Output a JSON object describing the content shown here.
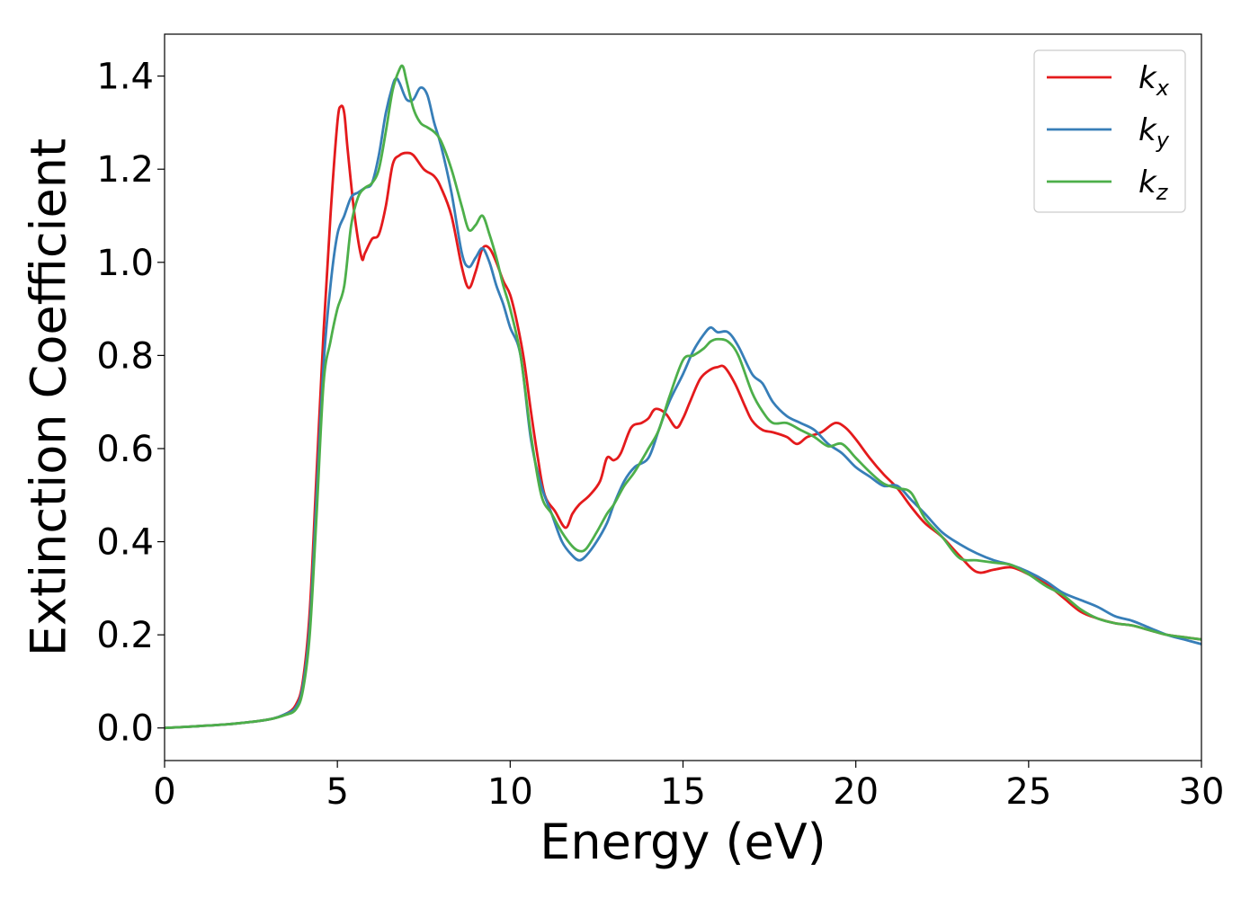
{
  "chart_data": {
    "type": "line",
    "title": "",
    "xlabel": "Energy (eV)",
    "ylabel": "Extinction Coefficient",
    "xlim": [
      0,
      30
    ],
    "ylim": [
      -0.07,
      1.49
    ],
    "xticks": [
      0,
      5,
      10,
      15,
      20,
      25,
      30
    ],
    "xtick_labels": [
      "0",
      "5",
      "10",
      "15",
      "20",
      "25",
      "30"
    ],
    "yticks": [
      0.0,
      0.2,
      0.4,
      0.6,
      0.8,
      1.0,
      1.2,
      1.4
    ],
    "ytick_labels": [
      "0.0",
      "0.2",
      "0.4",
      "0.6",
      "0.8",
      "1.0",
      "1.2",
      "1.4"
    ],
    "grid": false,
    "legend_position": "top-right",
    "series": [
      {
        "name": "k",
        "subscript": "x",
        "color": "#e41a1c",
        "x": [
          0,
          1,
          2,
          3,
          3.5,
          3.8,
          4.0,
          4.2,
          4.4,
          4.6,
          4.8,
          5.0,
          5.1,
          5.2,
          5.3,
          5.5,
          5.7,
          5.8,
          6.0,
          6.2,
          6.4,
          6.6,
          6.8,
          7.0,
          7.2,
          7.5,
          7.8,
          8.0,
          8.3,
          8.6,
          8.8,
          9.0,
          9.2,
          9.4,
          9.6,
          9.8,
          10.0,
          10.2,
          10.4,
          10.6,
          10.8,
          11.0,
          11.3,
          11.6,
          11.8,
          12.0,
          12.3,
          12.6,
          12.8,
          13.0,
          13.2,
          13.5,
          13.8,
          14.0,
          14.2,
          14.5,
          14.8,
          15.0,
          15.2,
          15.5,
          15.8,
          16.0,
          16.2,
          16.5,
          16.8,
          17.0,
          17.3,
          17.6,
          18.0,
          18.3,
          18.6,
          19.0,
          19.4,
          19.7,
          20.0,
          20.4,
          20.8,
          21.2,
          21.6,
          22.0,
          22.5,
          23.0,
          23.5,
          24.0,
          24.5,
          25.0,
          25.5,
          26.0,
          26.5,
          27.0,
          27.5,
          28.0,
          28.5,
          29.0,
          29.5,
          30.0
        ],
        "y": [
          0.0,
          0.004,
          0.009,
          0.018,
          0.03,
          0.05,
          0.1,
          0.25,
          0.55,
          0.85,
          1.1,
          1.3,
          1.335,
          1.32,
          1.24,
          1.1,
          1.01,
          1.02,
          1.05,
          1.06,
          1.12,
          1.21,
          1.23,
          1.235,
          1.23,
          1.2,
          1.185,
          1.16,
          1.1,
          0.99,
          0.945,
          0.98,
          1.03,
          1.03,
          1.0,
          0.96,
          0.93,
          0.87,
          0.79,
          0.68,
          0.58,
          0.5,
          0.465,
          0.43,
          0.46,
          0.48,
          0.5,
          0.53,
          0.58,
          0.575,
          0.59,
          0.645,
          0.655,
          0.665,
          0.685,
          0.675,
          0.645,
          0.665,
          0.7,
          0.75,
          0.77,
          0.775,
          0.775,
          0.74,
          0.69,
          0.66,
          0.64,
          0.635,
          0.625,
          0.61,
          0.625,
          0.635,
          0.655,
          0.645,
          0.62,
          0.58,
          0.545,
          0.515,
          0.475,
          0.44,
          0.41,
          0.37,
          0.335,
          0.34,
          0.345,
          0.33,
          0.31,
          0.28,
          0.25,
          0.235,
          0.225,
          0.22,
          0.21,
          0.2,
          0.195,
          0.19
        ]
      },
      {
        "name": "k",
        "subscript": "y",
        "color": "#377eb8",
        "x": [
          0,
          1,
          2,
          3,
          3.5,
          3.8,
          4.0,
          4.2,
          4.4,
          4.6,
          4.8,
          5.0,
          5.2,
          5.4,
          5.6,
          5.8,
          6.0,
          6.2,
          6.4,
          6.6,
          6.7,
          6.8,
          7.0,
          7.2,
          7.4,
          7.6,
          7.8,
          8.0,
          8.3,
          8.6,
          8.8,
          9.0,
          9.2,
          9.4,
          9.6,
          9.8,
          10.0,
          10.3,
          10.6,
          10.9,
          11.2,
          11.5,
          11.8,
          12.0,
          12.2,
          12.5,
          12.8,
          13.0,
          13.3,
          13.6,
          14.0,
          14.3,
          14.6,
          15.0,
          15.3,
          15.6,
          15.8,
          16.0,
          16.3,
          16.6,
          17.0,
          17.3,
          17.6,
          18.0,
          18.4,
          18.8,
          19.2,
          19.6,
          20.0,
          20.4,
          20.8,
          21.2,
          21.6,
          22.0,
          22.5,
          23.0,
          23.5,
          24.0,
          24.5,
          25.0,
          25.5,
          26.0,
          26.5,
          27.0,
          27.5,
          28.0,
          28.5,
          29.0,
          29.5,
          30.0
        ],
        "y": [
          0.0,
          0.004,
          0.009,
          0.018,
          0.03,
          0.045,
          0.09,
          0.22,
          0.5,
          0.78,
          0.95,
          1.06,
          1.1,
          1.14,
          1.15,
          1.16,
          1.17,
          1.23,
          1.32,
          1.38,
          1.395,
          1.385,
          1.35,
          1.35,
          1.375,
          1.36,
          1.3,
          1.25,
          1.15,
          1.02,
          0.99,
          1.01,
          1.03,
          1.0,
          0.95,
          0.91,
          0.86,
          0.8,
          0.62,
          0.52,
          0.46,
          0.4,
          0.37,
          0.36,
          0.37,
          0.4,
          0.44,
          0.48,
          0.53,
          0.56,
          0.58,
          0.64,
          0.7,
          0.76,
          0.81,
          0.845,
          0.86,
          0.85,
          0.85,
          0.82,
          0.76,
          0.74,
          0.7,
          0.67,
          0.655,
          0.64,
          0.61,
          0.59,
          0.56,
          0.54,
          0.52,
          0.52,
          0.49,
          0.46,
          0.42,
          0.395,
          0.375,
          0.36,
          0.35,
          0.335,
          0.315,
          0.29,
          0.275,
          0.26,
          0.24,
          0.23,
          0.215,
          0.2,
          0.19,
          0.18
        ]
      },
      {
        "name": "k",
        "subscript": "z",
        "color": "#4daf4a",
        "x": [
          0,
          1,
          2,
          3,
          3.5,
          3.8,
          4.0,
          4.2,
          4.4,
          4.6,
          4.8,
          5.0,
          5.2,
          5.4,
          5.6,
          5.8,
          6.0,
          6.2,
          6.4,
          6.6,
          6.8,
          6.9,
          7.0,
          7.2,
          7.4,
          7.6,
          7.8,
          8.0,
          8.3,
          8.6,
          8.8,
          9.0,
          9.2,
          9.4,
          9.6,
          9.8,
          10.0,
          10.3,
          10.6,
          10.9,
          11.2,
          11.5,
          11.8,
          12.0,
          12.2,
          12.5,
          12.8,
          13.0,
          13.3,
          13.6,
          14.0,
          14.3,
          14.6,
          15.0,
          15.3,
          15.6,
          15.8,
          16.0,
          16.3,
          16.6,
          17.0,
          17.3,
          17.6,
          18.0,
          18.4,
          18.8,
          19.2,
          19.6,
          20.0,
          20.4,
          20.8,
          21.2,
          21.6,
          22.0,
          22.5,
          23.0,
          23.5,
          24.0,
          24.5,
          25.0,
          25.5,
          26.0,
          26.5,
          27.0,
          27.5,
          28.0,
          28.5,
          29.0,
          29.5,
          30.0
        ],
        "y": [
          0.0,
          0.004,
          0.009,
          0.018,
          0.028,
          0.04,
          0.08,
          0.2,
          0.46,
          0.74,
          0.83,
          0.9,
          0.95,
          1.08,
          1.14,
          1.16,
          1.17,
          1.2,
          1.28,
          1.37,
          1.415,
          1.42,
          1.39,
          1.33,
          1.3,
          1.29,
          1.28,
          1.26,
          1.2,
          1.12,
          1.07,
          1.08,
          1.1,
          1.06,
          1.01,
          0.95,
          0.9,
          0.8,
          0.63,
          0.5,
          0.46,
          0.42,
          0.39,
          0.38,
          0.385,
          0.42,
          0.46,
          0.48,
          0.52,
          0.55,
          0.6,
          0.64,
          0.71,
          0.79,
          0.8,
          0.815,
          0.83,
          0.835,
          0.83,
          0.8,
          0.72,
          0.68,
          0.655,
          0.655,
          0.64,
          0.625,
          0.605,
          0.61,
          0.58,
          0.55,
          0.525,
          0.515,
          0.505,
          0.45,
          0.41,
          0.365,
          0.36,
          0.355,
          0.35,
          0.33,
          0.305,
          0.285,
          0.255,
          0.235,
          0.225,
          0.22,
          0.21,
          0.2,
          0.195,
          0.19
        ]
      }
    ]
  }
}
